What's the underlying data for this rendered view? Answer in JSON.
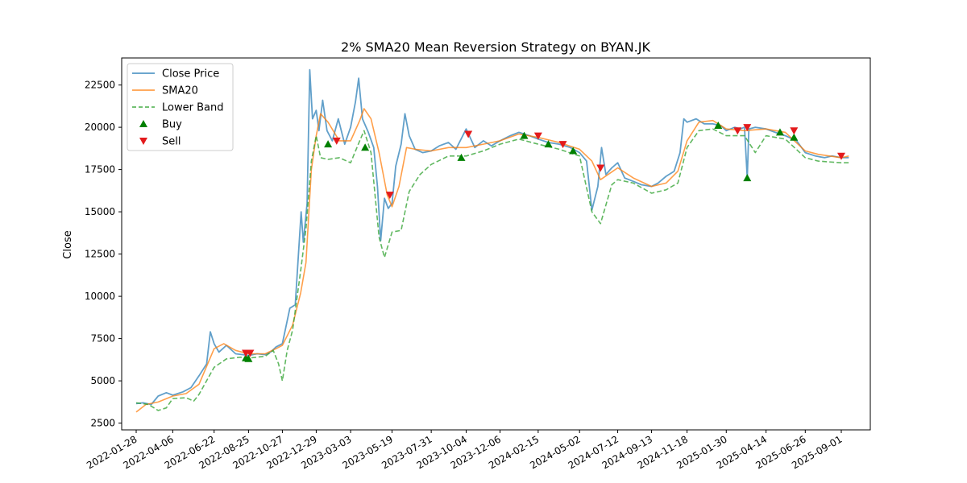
{
  "chart_data": {
    "type": "line",
    "title": "2% SMA20 Mean Reversion Strategy on BYAN.JK",
    "xlabel": "",
    "ylabel": "Close",
    "ylim": [
      2100,
      24100
    ],
    "yticks": [
      2500,
      5000,
      7500,
      10000,
      12500,
      15000,
      17500,
      20000,
      22500
    ],
    "xlim": [
      "2022-01-01",
      "2025-10-25"
    ],
    "x_tick_labels": [
      "2022-01-28",
      "2022-04-06",
      "2022-06-22",
      "2022-08-25",
      "2022-10-27",
      "2022-12-29",
      "2023-03-03",
      "2023-05-19",
      "2023-07-31",
      "2023-10-04",
      "2023-12-06",
      "2024-02-15",
      "2024-05-02",
      "2024-07-12",
      "2024-09-13",
      "2024-11-18",
      "2025-01-30",
      "2025-04-14",
      "2025-06-26",
      "2025-09-01"
    ],
    "legend": {
      "position": "top-left",
      "entries": [
        {
          "label": "Close Price",
          "kind": "line",
          "color": "#1f77b4"
        },
        {
          "label": "SMA20",
          "kind": "line",
          "color": "#ff7f0e"
        },
        {
          "label": "Lower Band",
          "kind": "dashed",
          "color": "#2ca02c"
        },
        {
          "label": "Buy",
          "kind": "marker-up",
          "color": "#008000"
        },
        {
          "label": "Sell",
          "kind": "marker-down",
          "color": "#e31a1c"
        }
      ]
    },
    "series": [
      {
        "name": "Close Price",
        "color": "#1f77b4",
        "points": [
          [
            "2022-01-28",
            3650
          ],
          [
            "2022-02-10",
            3700
          ],
          [
            "2022-02-25",
            3600
          ],
          [
            "2022-03-10",
            4100
          ],
          [
            "2022-03-25",
            4300
          ],
          [
            "2022-04-06",
            4150
          ],
          [
            "2022-04-25",
            4350
          ],
          [
            "2022-05-10",
            4600
          ],
          [
            "2022-05-25",
            5300
          ],
          [
            "2022-06-08",
            6000
          ],
          [
            "2022-06-15",
            7900
          ],
          [
            "2022-06-22",
            7200
          ],
          [
            "2022-07-01",
            6700
          ],
          [
            "2022-07-15",
            7100
          ],
          [
            "2022-08-01",
            6600
          ],
          [
            "2022-08-15",
            6550
          ],
          [
            "2022-08-25",
            6500
          ],
          [
            "2022-09-10",
            6600
          ],
          [
            "2022-09-25",
            6550
          ],
          [
            "2022-10-05",
            6700
          ],
          [
            "2022-10-15",
            7000
          ],
          [
            "2022-10-27",
            7200
          ],
          [
            "2022-11-10",
            9300
          ],
          [
            "2022-11-20",
            9500
          ],
          [
            "2022-12-01",
            15000
          ],
          [
            "2022-12-05",
            13200
          ],
          [
            "2022-12-12",
            15500
          ],
          [
            "2022-12-17",
            23400
          ],
          [
            "2022-12-22",
            20500
          ],
          [
            "2022-12-29",
            21000
          ],
          [
            "2023-01-03",
            19800
          ],
          [
            "2023-01-10",
            21600
          ],
          [
            "2023-01-18",
            19800
          ],
          [
            "2023-01-28",
            19200
          ],
          [
            "2023-02-08",
            20500
          ],
          [
            "2023-02-20",
            19000
          ],
          [
            "2023-03-03",
            20000
          ],
          [
            "2023-03-12",
            21500
          ],
          [
            "2023-03-18",
            22900
          ],
          [
            "2023-03-25",
            20500
          ],
          [
            "2023-04-05",
            19700
          ],
          [
            "2023-04-15",
            18800
          ],
          [
            "2023-04-22",
            16500
          ],
          [
            "2023-04-28",
            13300
          ],
          [
            "2023-05-05",
            15800
          ],
          [
            "2023-05-12",
            15200
          ],
          [
            "2023-05-19",
            15500
          ],
          [
            "2023-05-26",
            17700
          ],
          [
            "2023-06-05",
            19000
          ],
          [
            "2023-06-12",
            20800
          ],
          [
            "2023-06-20",
            19500
          ],
          [
            "2023-07-01",
            18700
          ],
          [
            "2023-07-15",
            18500
          ],
          [
            "2023-07-31",
            18600
          ],
          [
            "2023-08-15",
            18900
          ],
          [
            "2023-09-01",
            19100
          ],
          [
            "2023-09-15",
            18700
          ],
          [
            "2023-10-04",
            19900
          ],
          [
            "2023-10-20",
            18800
          ],
          [
            "2023-11-05",
            19200
          ],
          [
            "2023-11-20",
            18900
          ],
          [
            "2023-12-06",
            19200
          ],
          [
            "2023-12-25",
            19500
          ],
          [
            "2024-01-10",
            19700
          ],
          [
            "2024-01-30",
            19500
          ],
          [
            "2024-02-15",
            19300
          ],
          [
            "2024-03-05",
            19100
          ],
          [
            "2024-03-25",
            19000
          ],
          [
            "2024-04-15",
            18800
          ],
          [
            "2024-05-02",
            18500
          ],
          [
            "2024-05-15",
            18000
          ],
          [
            "2024-05-25",
            15100
          ],
          [
            "2024-06-05",
            16500
          ],
          [
            "2024-06-12",
            18800
          ],
          [
            "2024-06-20",
            17200
          ],
          [
            "2024-07-01",
            17600
          ],
          [
            "2024-07-12",
            17900
          ],
          [
            "2024-07-25",
            17000
          ],
          [
            "2024-08-10",
            16800
          ],
          [
            "2024-08-25",
            16600
          ],
          [
            "2024-09-13",
            16500
          ],
          [
            "2024-09-25",
            16700
          ],
          [
            "2024-10-10",
            17100
          ],
          [
            "2024-10-25",
            17400
          ],
          [
            "2024-11-05",
            18500
          ],
          [
            "2024-11-12",
            20500
          ],
          [
            "2024-11-18",
            20300
          ],
          [
            "2024-12-05",
            20500
          ],
          [
            "2024-12-20",
            20200
          ],
          [
            "2025-01-05",
            20200
          ],
          [
            "2025-01-20",
            20100
          ],
          [
            "2025-01-30",
            19800
          ],
          [
            "2025-02-15",
            20000
          ],
          [
            "2025-02-25",
            19900
          ],
          [
            "2025-03-05",
            20000
          ],
          [
            "2025-03-10",
            17000
          ],
          [
            "2025-03-13",
            19900
          ],
          [
            "2025-03-25",
            20000
          ],
          [
            "2025-04-14",
            19900
          ],
          [
            "2025-05-01",
            19700
          ],
          [
            "2025-05-20",
            19500
          ],
          [
            "2025-06-10",
            19200
          ],
          [
            "2025-06-26",
            18500
          ],
          [
            "2025-07-15",
            18300
          ],
          [
            "2025-08-01",
            18200
          ],
          [
            "2025-08-15",
            18300
          ],
          [
            "2025-09-01",
            18200
          ],
          [
            "2025-09-15",
            18200
          ]
        ]
      },
      {
        "name": "SMA20",
        "color": "#ff7f0e",
        "points": [
          [
            "2022-01-28",
            3150
          ],
          [
            "2022-02-15",
            3600
          ],
          [
            "2022-03-10",
            3750
          ],
          [
            "2022-04-06",
            4100
          ],
          [
            "2022-05-01",
            4250
          ],
          [
            "2022-05-25",
            4800
          ],
          [
            "2022-06-22",
            6900
          ],
          [
            "2022-07-10",
            7200
          ],
          [
            "2022-08-01",
            6800
          ],
          [
            "2022-08-25",
            6600
          ],
          [
            "2022-09-25",
            6600
          ],
          [
            "2022-10-15",
            6900
          ],
          [
            "2022-10-27",
            7100
          ],
          [
            "2022-11-15",
            8300
          ],
          [
            "2022-11-30",
            10200
          ],
          [
            "2022-12-10",
            12000
          ],
          [
            "2022-12-20",
            17500
          ],
          [
            "2022-12-29",
            19500
          ],
          [
            "2023-01-06",
            20800
          ],
          [
            "2023-01-20",
            20300
          ],
          [
            "2023-02-10",
            19200
          ],
          [
            "2023-03-03",
            19200
          ],
          [
            "2023-03-20",
            20400
          ],
          [
            "2023-03-28",
            21100
          ],
          [
            "2023-04-10",
            20500
          ],
          [
            "2023-04-25",
            18500
          ],
          [
            "2023-05-10",
            16000
          ],
          [
            "2023-05-19",
            15300
          ],
          [
            "2023-06-01",
            16500
          ],
          [
            "2023-06-15",
            18800
          ],
          [
            "2023-07-01",
            18700
          ],
          [
            "2023-07-31",
            18600
          ],
          [
            "2023-09-01",
            18800
          ],
          [
            "2023-10-04",
            18800
          ],
          [
            "2023-11-05",
            19000
          ],
          [
            "2023-12-06",
            19200
          ],
          [
            "2024-01-10",
            19600
          ],
          [
            "2024-02-15",
            19400
          ],
          [
            "2024-03-25",
            19100
          ],
          [
            "2024-05-02",
            18700
          ],
          [
            "2024-05-25",
            18000
          ],
          [
            "2024-06-10",
            16900
          ],
          [
            "2024-07-12",
            17600
          ],
          [
            "2024-08-10",
            17000
          ],
          [
            "2024-09-13",
            16500
          ],
          [
            "2024-10-10",
            16700
          ],
          [
            "2024-11-01",
            17400
          ],
          [
            "2024-11-18",
            19200
          ],
          [
            "2024-12-10",
            20300
          ],
          [
            "2025-01-05",
            20400
          ],
          [
            "2025-01-30",
            19900
          ],
          [
            "2025-03-05",
            19800
          ],
          [
            "2025-04-14",
            19900
          ],
          [
            "2025-05-20",
            19700
          ],
          [
            "2025-06-26",
            18600
          ],
          [
            "2025-07-20",
            18400
          ],
          [
            "2025-09-01",
            18200
          ],
          [
            "2025-09-15",
            18300
          ]
        ]
      },
      {
        "name": "Lower Band",
        "color": "#2ca02c",
        "points": [
          [
            "2022-01-28",
            3700
          ],
          [
            "2022-02-20",
            3600
          ],
          [
            "2022-03-10",
            3250
          ],
          [
            "2022-03-25",
            3400
          ],
          [
            "2022-04-06",
            3950
          ],
          [
            "2022-05-01",
            4000
          ],
          [
            "2022-05-15",
            3800
          ],
          [
            "2022-05-25",
            4200
          ],
          [
            "2022-06-22",
            5800
          ],
          [
            "2022-07-15",
            6300
          ],
          [
            "2022-08-10",
            6400
          ],
          [
            "2022-08-25",
            6350
          ],
          [
            "2022-09-25",
            6450
          ],
          [
            "2022-10-10",
            6800
          ],
          [
            "2022-10-20",
            6000
          ],
          [
            "2022-10-27",
            5000
          ],
          [
            "2022-11-05",
            6800
          ],
          [
            "2022-11-15",
            8000
          ],
          [
            "2022-11-30",
            11500
          ],
          [
            "2022-12-10",
            14000
          ],
          [
            "2022-12-20",
            18000
          ],
          [
            "2022-12-29",
            19500
          ],
          [
            "2023-01-06",
            18200
          ],
          [
            "2023-01-20",
            18100
          ],
          [
            "2023-02-10",
            18200
          ],
          [
            "2023-03-03",
            17900
          ],
          [
            "2023-03-20",
            19200
          ],
          [
            "2023-03-28",
            19800
          ],
          [
            "2023-04-10",
            18500
          ],
          [
            "2023-04-25",
            13500
          ],
          [
            "2023-05-05",
            12300
          ],
          [
            "2023-05-19",
            13800
          ],
          [
            "2023-06-05",
            13900
          ],
          [
            "2023-06-20",
            16200
          ],
          [
            "2023-07-10",
            17200
          ],
          [
            "2023-07-31",
            17800
          ],
          [
            "2023-09-01",
            18300
          ],
          [
            "2023-10-04",
            18300
          ],
          [
            "2023-11-05",
            18600
          ],
          [
            "2023-12-06",
            19000
          ],
          [
            "2024-01-10",
            19300
          ],
          [
            "2024-02-15",
            19000
          ],
          [
            "2024-03-25",
            18700
          ],
          [
            "2024-05-02",
            18300
          ],
          [
            "2024-05-25",
            15000
          ],
          [
            "2024-06-10",
            14300
          ],
          [
            "2024-07-01",
            16600
          ],
          [
            "2024-07-12",
            16900
          ],
          [
            "2024-08-10",
            16700
          ],
          [
            "2024-09-13",
            16100
          ],
          [
            "2024-10-10",
            16300
          ],
          [
            "2024-11-01",
            16700
          ],
          [
            "2024-11-18",
            18800
          ],
          [
            "2024-12-10",
            19800
          ],
          [
            "2025-01-05",
            19900
          ],
          [
            "2025-01-30",
            19500
          ],
          [
            "2025-03-05",
            19500
          ],
          [
            "2025-03-25",
            18500
          ],
          [
            "2025-04-14",
            19500
          ],
          [
            "2025-05-20",
            19300
          ],
          [
            "2025-06-26",
            18200
          ],
          [
            "2025-07-20",
            18000
          ],
          [
            "2025-09-01",
            17900
          ],
          [
            "2025-09-15",
            17900
          ]
        ]
      }
    ],
    "buy_signals": [
      [
        "2022-08-20",
        6350
      ],
      [
        "2022-08-25",
        6300
      ],
      [
        "2023-01-20",
        19000
      ],
      [
        "2023-03-30",
        18800
      ],
      [
        "2023-09-25",
        18200
      ],
      [
        "2024-01-20",
        19500
      ],
      [
        "2024-03-05",
        19000
      ],
      [
        "2024-04-20",
        18600
      ],
      [
        "2025-01-15",
        20100
      ],
      [
        "2025-03-10",
        17000
      ],
      [
        "2025-05-10",
        19700
      ],
      [
        "2025-06-05",
        19400
      ]
    ],
    "sell_signals": [
      [
        "2022-08-20",
        6650
      ],
      [
        "2022-08-28",
        6650
      ],
      [
        "2023-02-05",
        19200
      ],
      [
        "2023-05-15",
        16000
      ],
      [
        "2023-10-08",
        19600
      ],
      [
        "2024-02-15",
        19500
      ],
      [
        "2024-04-01",
        19000
      ],
      [
        "2024-06-10",
        17600
      ],
      [
        "2025-02-20",
        19800
      ],
      [
        "2025-03-10",
        20000
      ],
      [
        "2025-06-05",
        19800
      ],
      [
        "2025-09-01",
        18300
      ]
    ]
  }
}
